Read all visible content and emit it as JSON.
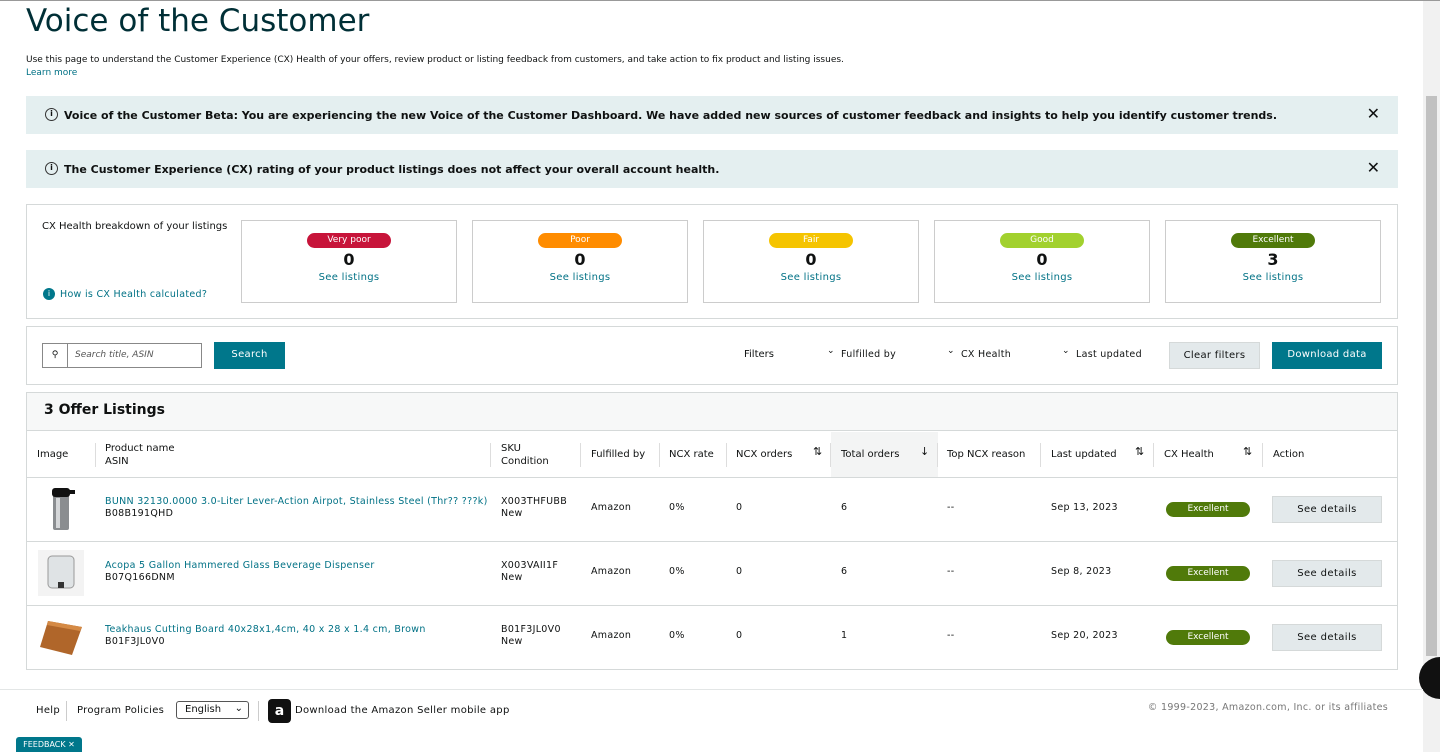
{
  "header": {
    "title": "Voice of the Customer",
    "description": "Use this page to understand the Customer Experience (CX) Health of your offers, review product or listing feedback from customers, and take action to fix product and listing issues.",
    "learn_more": "Learn more"
  },
  "alerts": [
    "Voice of the Customer Beta: You are experiencing the new Voice of the Customer Dashboard. We have added new sources of customer feedback and insights to help you identify customer trends.",
    "The Customer Experience (CX) rating of your product listings does not affect your overall account health."
  ],
  "breakdown": {
    "title": "CX Health breakdown of your listings",
    "help": "How is CX Health calculated?",
    "cards": [
      {
        "label": "Very poor",
        "count": 0,
        "link": "See listings"
      },
      {
        "label": "Poor",
        "count": 0,
        "link": "See listings"
      },
      {
        "label": "Fair",
        "count": 0,
        "link": "See listings"
      },
      {
        "label": "Good",
        "count": 0,
        "link": "See listings"
      },
      {
        "label": "Excellent",
        "count": 3,
        "link": "See listings"
      }
    ]
  },
  "toolbar": {
    "search_placeholder": "Search title, ASIN",
    "search_button": "Search",
    "filters_label": "Filters",
    "filters": [
      "Fulfilled by",
      "CX Health",
      "Last updated"
    ],
    "clear": "Clear filters",
    "download": "Download data"
  },
  "listings": {
    "title": "3 Offer Listings",
    "columns": [
      {
        "label": "Image"
      },
      {
        "label": "Product name",
        "sublabel": "ASIN"
      },
      {
        "label": "SKU",
        "sublabel": "Condition"
      },
      {
        "label": "Fulfilled by"
      },
      {
        "label": "NCX rate"
      },
      {
        "label": "NCX orders"
      },
      {
        "label": "Total orders"
      },
      {
        "label": "Top NCX reason"
      },
      {
        "label": "Last updated"
      },
      {
        "label": "CX Health"
      },
      {
        "label": "Action"
      }
    ],
    "rows": [
      {
        "product": "BUNN 32130.0000 3.0-Liter Lever-Action Airpot, Stainless Steel (Thr?? ???k)",
        "asin": "B08B191QHD",
        "sku": "X003THFUBB",
        "condition": "New",
        "fulfilled_by": "Amazon",
        "ncx_rate": "0%",
        "ncx_orders": 0,
        "total_orders": 6,
        "top_reason": "--",
        "last_updated": "Sep 13, 2023",
        "cx_health": "Excellent",
        "action": "See details"
      },
      {
        "product": "Acopa 5 Gallon Hammered Glass Beverage Dispenser",
        "asin": "B07Q166DNM",
        "sku": "X003VAII1F",
        "condition": "New",
        "fulfilled_by": "Amazon",
        "ncx_rate": "0%",
        "ncx_orders": 0,
        "total_orders": 6,
        "top_reason": "--",
        "last_updated": "Sep 8, 2023",
        "cx_health": "Excellent",
        "action": "See details"
      },
      {
        "product": "Teakhaus Cutting Board 40x28x1,4cm, 40 x 28 x 1.4 cm, Brown",
        "asin": "B01F3JL0V0",
        "sku": "B01F3JL0V0",
        "condition": "New",
        "fulfilled_by": "Amazon",
        "ncx_rate": "0%",
        "ncx_orders": 0,
        "total_orders": 1,
        "top_reason": "--",
        "last_updated": "Sep 20, 2023",
        "cx_health": "Excellent",
        "action": "See details"
      }
    ]
  },
  "footer": {
    "help": "Help",
    "policies": "Program Policies",
    "language": "English",
    "app": "Download the Amazon Seller mobile app",
    "copyright": "© 1999-2023, Amazon.com, Inc. or its affiliates",
    "feedback": "FEEDBACK ✕"
  }
}
